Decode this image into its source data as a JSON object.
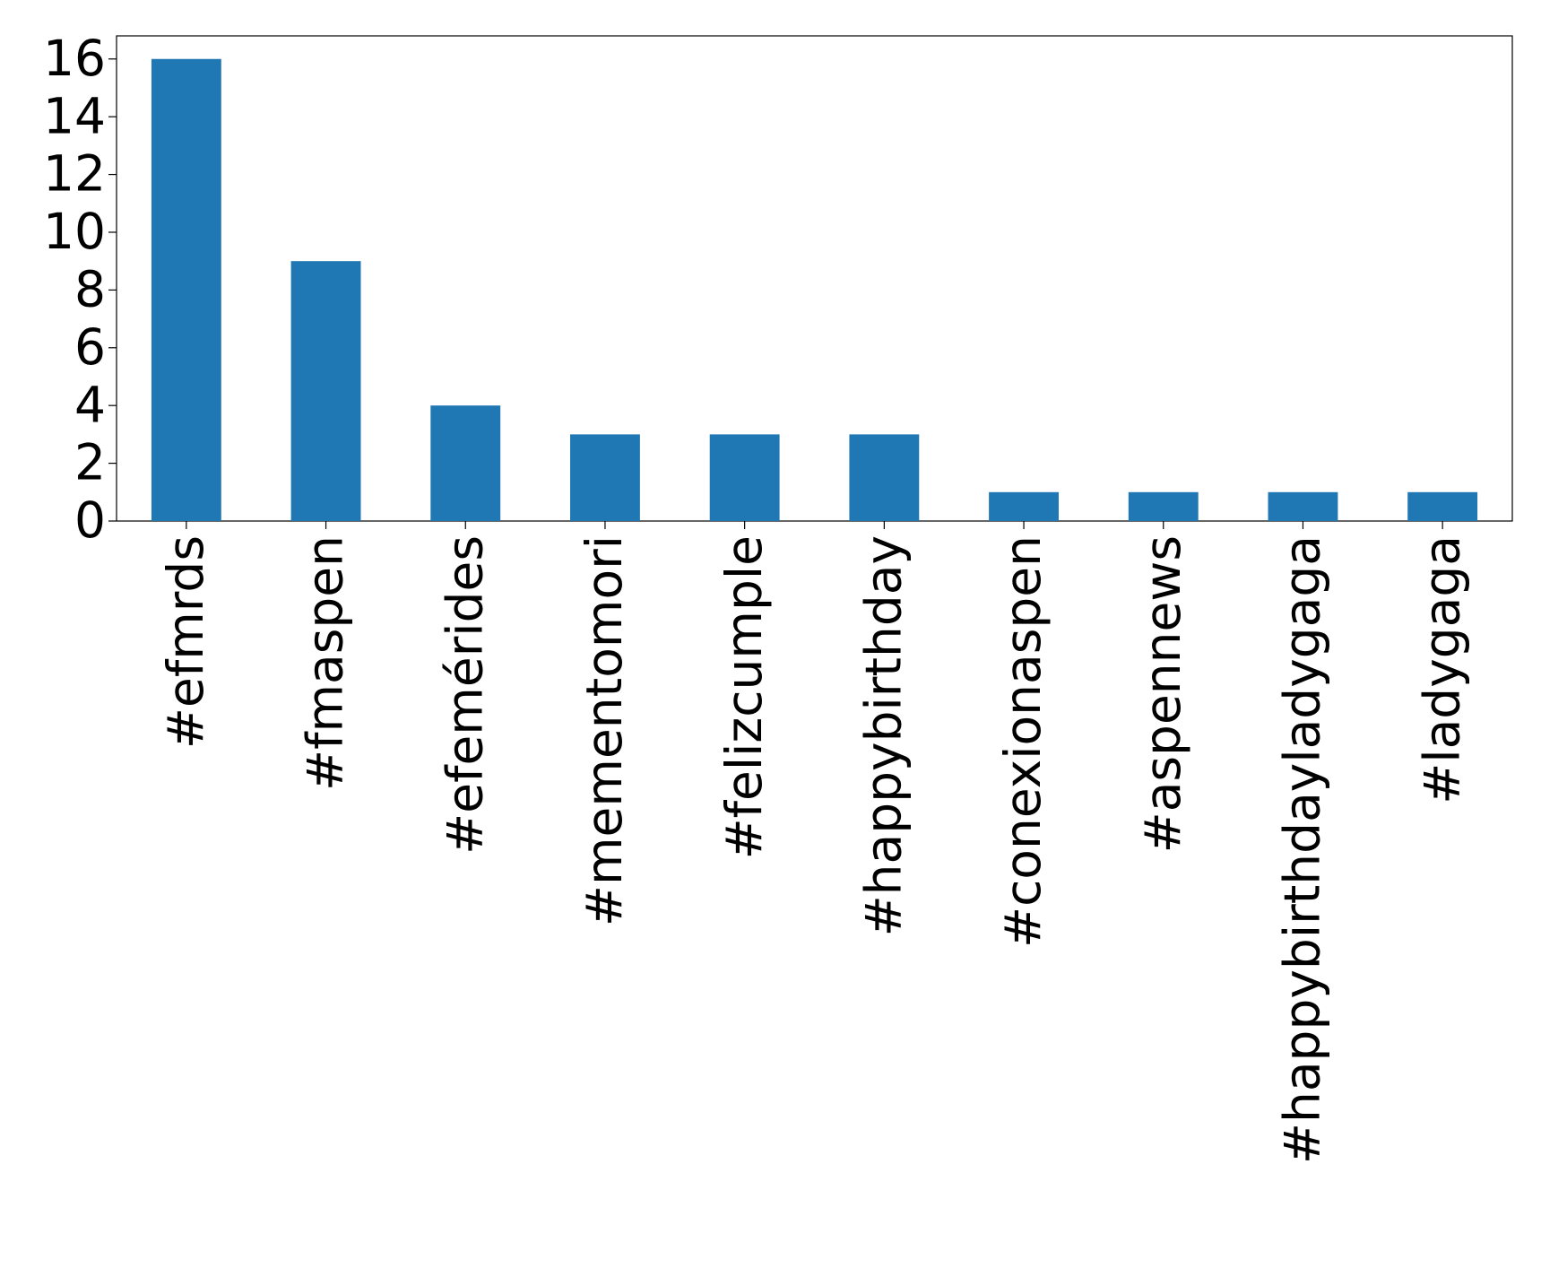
{
  "chart_data": {
    "type": "bar",
    "categories": [
      "#efmrds",
      "#fmaspen",
      "#efemérides",
      "#mementomori",
      "#felizcumple",
      "#happybirthday",
      "#conexionaspen",
      "#aspennews",
      "#happybirthdayladygaga",
      "#ladygaga"
    ],
    "values": [
      16,
      9,
      4,
      3,
      3,
      3,
      1,
      1,
      1,
      1
    ],
    "color": "#1f77b4",
    "ylim": [
      0,
      16.8
    ],
    "yticks": [
      0,
      2,
      4,
      6,
      8,
      10,
      12,
      14,
      16
    ],
    "grid": false
  }
}
